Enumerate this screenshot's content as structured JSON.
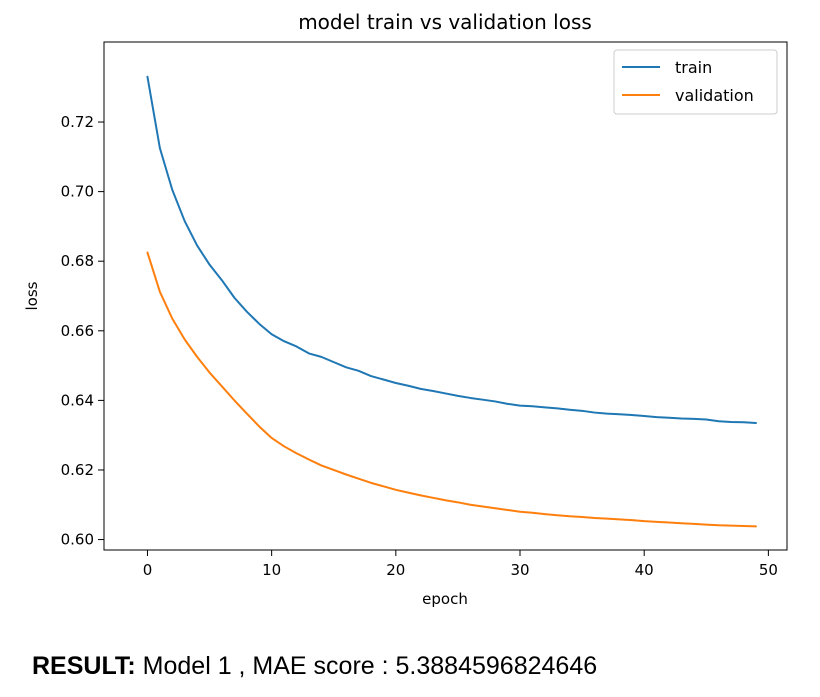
{
  "chart_data": {
    "type": "line",
    "title": "model train vs validation loss",
    "xlabel": "epoch",
    "ylabel": "loss",
    "xlim": [
      -3.5,
      51.5
    ],
    "ylim": [
      0.597,
      0.743
    ],
    "xticks": [
      0,
      10,
      20,
      30,
      40,
      50
    ],
    "yticks": [
      0.6,
      0.62,
      0.64,
      0.66,
      0.68,
      0.7,
      0.72
    ],
    "ytick_labels": [
      "0.60",
      "0.62",
      "0.64",
      "0.66",
      "0.68",
      "0.70",
      "0.72"
    ],
    "grid": false,
    "legend_position": "top-right",
    "x": [
      0,
      1,
      2,
      3,
      4,
      5,
      6,
      7,
      8,
      9,
      10,
      11,
      12,
      13,
      14,
      15,
      16,
      17,
      18,
      19,
      20,
      21,
      22,
      23,
      24,
      25,
      26,
      27,
      28,
      29,
      30,
      31,
      32,
      33,
      34,
      35,
      36,
      37,
      38,
      39,
      40,
      41,
      42,
      43,
      44,
      45,
      46,
      47,
      48,
      49
    ],
    "series": [
      {
        "name": "train",
        "color": "#1f77b4",
        "values": [
          0.733,
          0.7125,
          0.7005,
          0.6915,
          0.6845,
          0.679,
          0.6745,
          0.6695,
          0.6655,
          0.662,
          0.659,
          0.657,
          0.6555,
          0.6535,
          0.6525,
          0.651,
          0.6495,
          0.6485,
          0.647,
          0.646,
          0.645,
          0.6442,
          0.6433,
          0.6427,
          0.642,
          0.6413,
          0.6407,
          0.6402,
          0.6397,
          0.639,
          0.6385,
          0.6383,
          0.638,
          0.6377,
          0.6373,
          0.637,
          0.6365,
          0.6362,
          0.636,
          0.6358,
          0.6355,
          0.6352,
          0.635,
          0.6348,
          0.6347,
          0.6345,
          0.634,
          0.6338,
          0.6337,
          0.6335
        ]
      },
      {
        "name": "validation",
        "color": "#ff7f0e",
        "values": [
          0.6825,
          0.6712,
          0.6635,
          0.6575,
          0.6525,
          0.648,
          0.644,
          0.64,
          0.6362,
          0.6325,
          0.6292,
          0.6268,
          0.6248,
          0.623,
          0.6213,
          0.62,
          0.6187,
          0.6175,
          0.6163,
          0.6153,
          0.6143,
          0.6135,
          0.6127,
          0.612,
          0.6113,
          0.6107,
          0.61,
          0.6095,
          0.609,
          0.6085,
          0.608,
          0.6077,
          0.6073,
          0.607,
          0.6067,
          0.6065,
          0.6062,
          0.606,
          0.6058,
          0.6056,
          0.6053,
          0.6051,
          0.6049,
          0.6047,
          0.6045,
          0.6043,
          0.6041,
          0.604,
          0.6039,
          0.6038
        ]
      }
    ]
  },
  "result": {
    "label": "RESULT:",
    "text": "Model 1 , MAE score : 5.3884596824646"
  }
}
